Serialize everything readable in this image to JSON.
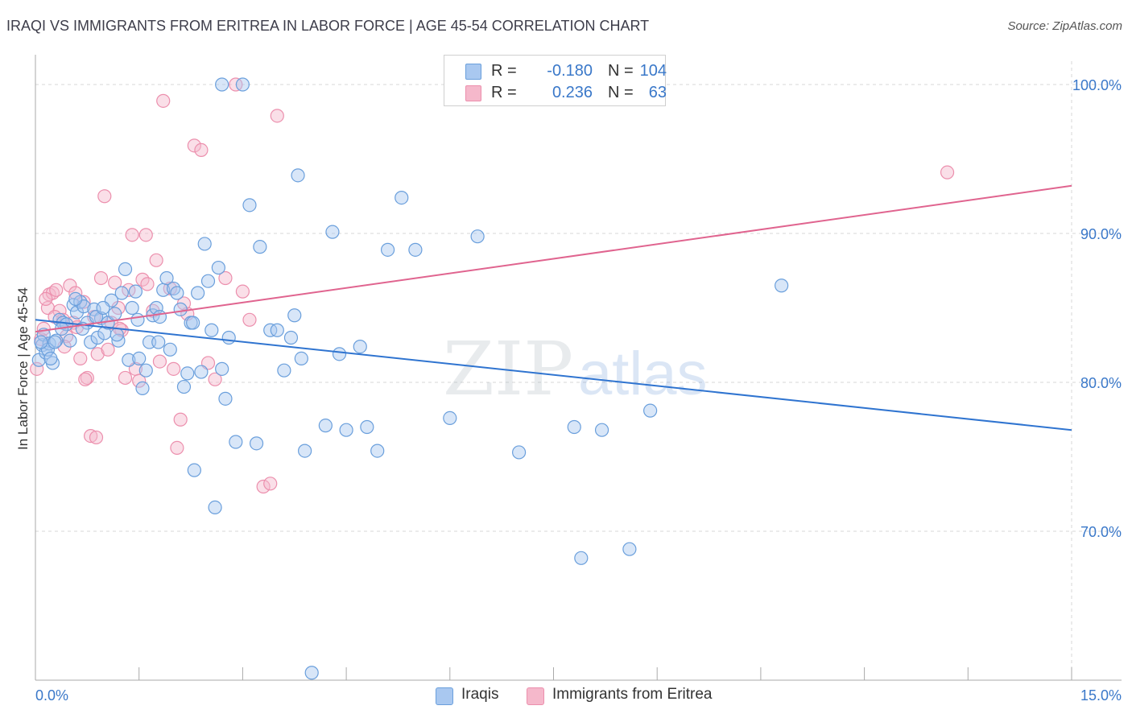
{
  "header": {
    "title": "IRAQI VS IMMIGRANTS FROM ERITREA IN LABOR FORCE | AGE 45-54 CORRELATION CHART",
    "source": "Source: ZipAtlas.com"
  },
  "stats_legend": {
    "rows": [
      {
        "r_label": "R =",
        "r_value": "-0.180",
        "n_label": "N =",
        "n_value": "104",
        "color": "#a9c8f0"
      },
      {
        "r_label": "R =",
        "r_value": "0.236",
        "n_label": "N =",
        "n_value": "63",
        "color": "#f5b8cb"
      }
    ]
  },
  "watermark": {
    "zip": "ZIP",
    "atlas": "atlas"
  },
  "colors": {
    "iraqi_fill": "#a9c8f0",
    "iraqi_stroke": "#6a9fdc",
    "iraqi_line": "#2f74d0",
    "eritrea_fill": "#f5b8cb",
    "eritrea_stroke": "#ec8fad",
    "eritrea_line": "#e0648f",
    "grid": "#d7d7d7",
    "axis_label": "#3a78c9"
  },
  "chart_data": {
    "type": "scatter",
    "title": "IRAQI VS IMMIGRANTS FROM ERITREA IN LABOR FORCE | AGE 45-54 CORRELATION CHART",
    "xlabel": "",
    "ylabel": "In Labor Force | Age 45-54",
    "xlim": [
      0,
      15
    ],
    "ylim": [
      60,
      102
    ],
    "x_tick_labels": [
      {
        "value": 0,
        "label": "0.0%"
      },
      {
        "value": 15,
        "label": "15.0%"
      }
    ],
    "y_tick_labels": [
      {
        "value": 100,
        "label": "100.0%"
      },
      {
        "value": 90,
        "label": "90.0%"
      },
      {
        "value": 80,
        "label": "80.0%"
      },
      {
        "value": 70,
        "label": "70.0%"
      }
    ],
    "grid": true,
    "legend": "bottom-center",
    "series": [
      {
        "name": "Iraqis",
        "r": -0.18,
        "n": 104,
        "trend": {
          "x": [
            0,
            15
          ],
          "y": [
            84.2,
            76.8
          ]
        },
        "points": [
          [
            0.05,
            81.5
          ],
          [
            0.1,
            82.5
          ],
          [
            0.12,
            83.2
          ],
          [
            0.15,
            82.0
          ],
          [
            0.2,
            82.6
          ],
          [
            0.25,
            81.3
          ],
          [
            0.3,
            82.8
          ],
          [
            0.35,
            84.2
          ],
          [
            0.4,
            84.0
          ],
          [
            0.45,
            83.9
          ],
          [
            0.5,
            82.8
          ],
          [
            0.55,
            85.2
          ],
          [
            0.6,
            84.7
          ],
          [
            0.65,
            85.4
          ],
          [
            0.7,
            85.1
          ],
          [
            0.75,
            84.0
          ],
          [
            0.8,
            82.7
          ],
          [
            0.85,
            84.9
          ],
          [
            0.9,
            83.0
          ],
          [
            0.95,
            84.3
          ],
          [
            1.0,
            83.3
          ],
          [
            1.05,
            84.0
          ],
          [
            1.1,
            85.5
          ],
          [
            1.15,
            84.6
          ],
          [
            1.2,
            82.8
          ],
          [
            1.25,
            86.0
          ],
          [
            1.3,
            87.6
          ],
          [
            1.35,
            81.5
          ],
          [
            1.4,
            85.0
          ],
          [
            1.45,
            86.1
          ],
          [
            1.5,
            81.6
          ],
          [
            1.55,
            79.6
          ],
          [
            1.6,
            80.8
          ],
          [
            1.65,
            82.7
          ],
          [
            1.7,
            84.5
          ],
          [
            1.75,
            85.0
          ],
          [
            1.8,
            84.4
          ],
          [
            1.85,
            86.2
          ],
          [
            1.9,
            87.0
          ],
          [
            1.95,
            82.2
          ],
          [
            2.0,
            86.3
          ],
          [
            2.05,
            86.0
          ],
          [
            2.1,
            84.9
          ],
          [
            2.15,
            79.7
          ],
          [
            2.2,
            80.6
          ],
          [
            2.25,
            84.0
          ],
          [
            2.3,
            74.1
          ],
          [
            2.35,
            86.0
          ],
          [
            2.4,
            80.7
          ],
          [
            2.45,
            89.3
          ],
          [
            2.5,
            86.8
          ],
          [
            2.55,
            83.5
          ],
          [
            2.6,
            71.6
          ],
          [
            2.65,
            87.7
          ],
          [
            2.7,
            80.9
          ],
          [
            2.75,
            78.9
          ],
          [
            2.8,
            83.0
          ],
          [
            2.9,
            76.0
          ],
          [
            3.0,
            100.0
          ],
          [
            3.1,
            91.9
          ],
          [
            3.2,
            75.9
          ],
          [
            3.25,
            89.1
          ],
          [
            3.4,
            83.5
          ],
          [
            3.5,
            83.5
          ],
          [
            3.6,
            80.8
          ],
          [
            3.7,
            83.0
          ],
          [
            3.75,
            84.5
          ],
          [
            3.8,
            93.9
          ],
          [
            3.85,
            81.6
          ],
          [
            3.9,
            75.4
          ],
          [
            4.0,
            60.5
          ],
          [
            4.2,
            77.1
          ],
          [
            4.3,
            90.1
          ],
          [
            4.4,
            81.9
          ],
          [
            4.5,
            76.8
          ],
          [
            4.7,
            82.4
          ],
          [
            4.8,
            77.0
          ],
          [
            4.95,
            75.4
          ],
          [
            5.1,
            88.9
          ],
          [
            5.3,
            92.4
          ],
          [
            5.5,
            88.9
          ],
          [
            6.0,
            77.6
          ],
          [
            6.4,
            89.8
          ],
          [
            7.0,
            75.3
          ],
          [
            7.8,
            77.0
          ],
          [
            7.9,
            68.2
          ],
          [
            8.2,
            76.8
          ],
          [
            8.6,
            68.8
          ],
          [
            8.9,
            78.1
          ],
          [
            10.8,
            86.5
          ],
          [
            2.7,
            100.0
          ],
          [
            0.18,
            82.2
          ],
          [
            0.28,
            82.7
          ],
          [
            0.58,
            85.6
          ],
          [
            0.68,
            83.6
          ],
          [
            0.88,
            84.4
          ],
          [
            1.18,
            83.2
          ],
          [
            1.48,
            84.2
          ],
          [
            1.78,
            82.7
          ],
          [
            2.28,
            84.0
          ],
          [
            0.08,
            82.7
          ],
          [
            0.22,
            81.6
          ],
          [
            0.38,
            83.6
          ],
          [
            0.98,
            85.0
          ]
        ]
      },
      {
        "name": "Immigrants from Eritrea",
        "r": 0.236,
        "n": 63,
        "trend": {
          "x": [
            0,
            15
          ],
          "y": [
            83.4,
            93.2
          ]
        },
        "points": [
          [
            0.02,
            80.9
          ],
          [
            0.08,
            82.9
          ],
          [
            0.12,
            83.6
          ],
          [
            0.18,
            85.0
          ],
          [
            0.2,
            85.9
          ],
          [
            0.25,
            86.0
          ],
          [
            0.3,
            86.2
          ],
          [
            0.35,
            84.8
          ],
          [
            0.4,
            84.2
          ],
          [
            0.45,
            83.1
          ],
          [
            0.5,
            86.5
          ],
          [
            0.55,
            84.0
          ],
          [
            0.6,
            83.7
          ],
          [
            0.65,
            81.6
          ],
          [
            0.7,
            85.4
          ],
          [
            0.75,
            80.3
          ],
          [
            0.8,
            76.4
          ],
          [
            0.85,
            84.4
          ],
          [
            0.9,
            81.9
          ],
          [
            0.95,
            87.0
          ],
          [
            1.0,
            92.5
          ],
          [
            1.05,
            82.2
          ],
          [
            1.1,
            84.0
          ],
          [
            1.15,
            86.7
          ],
          [
            1.2,
            85.0
          ],
          [
            1.25,
            83.5
          ],
          [
            1.3,
            80.3
          ],
          [
            1.35,
            86.2
          ],
          [
            1.4,
            89.9
          ],
          [
            1.45,
            80.9
          ],
          [
            1.5,
            80.1
          ],
          [
            1.55,
            86.9
          ],
          [
            1.6,
            89.9
          ],
          [
            1.7,
            84.8
          ],
          [
            1.75,
            88.2
          ],
          [
            1.8,
            81.4
          ],
          [
            1.85,
            98.9
          ],
          [
            1.95,
            86.3
          ],
          [
            2.0,
            80.9
          ],
          [
            2.05,
            75.6
          ],
          [
            2.1,
            77.5
          ],
          [
            2.2,
            84.6
          ],
          [
            2.3,
            95.9
          ],
          [
            2.4,
            95.6
          ],
          [
            2.5,
            81.3
          ],
          [
            2.6,
            80.2
          ],
          [
            2.75,
            87.0
          ],
          [
            2.9,
            100.0
          ],
          [
            3.0,
            86.1
          ],
          [
            3.1,
            84.2
          ],
          [
            3.3,
            73.0
          ],
          [
            3.4,
            73.2
          ],
          [
            3.5,
            97.9
          ],
          [
            13.2,
            94.1
          ],
          [
            0.15,
            85.6
          ],
          [
            0.28,
            84.4
          ],
          [
            0.42,
            82.4
          ],
          [
            0.58,
            86.0
          ],
          [
            0.72,
            80.2
          ],
          [
            0.88,
            76.3
          ],
          [
            1.22,
            83.6
          ],
          [
            1.62,
            86.6
          ],
          [
            2.15,
            85.3
          ]
        ]
      }
    ]
  }
}
